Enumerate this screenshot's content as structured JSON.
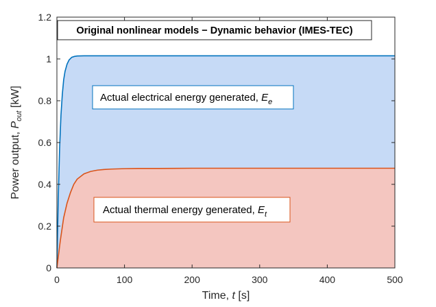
{
  "chart_data": {
    "type": "area",
    "title": "Original nonlinear models − Dynamic behavior (IMES-TEC)",
    "xlabel": {
      "prefix": "Time, ",
      "var": "t",
      "unit": " [s]"
    },
    "ylabel": {
      "prefix": "Power output, ",
      "var": "P",
      "sub": "out",
      "unit": " [kW]"
    },
    "xlim": [
      0,
      500
    ],
    "ylim": [
      0,
      1.2
    ],
    "xticks": [
      0,
      100,
      200,
      300,
      400,
      500
    ],
    "yticks": [
      0,
      0.2,
      0.4,
      0.6,
      0.8,
      1,
      1.2
    ],
    "grid": false,
    "series": [
      {
        "key": "electrical",
        "line_color": "#0072BD",
        "fill_color": "#C6DAF6",
        "x": [
          0,
          2,
          4,
          6,
          8,
          10,
          12,
          15,
          18,
          22,
          26,
          30,
          40,
          50,
          60,
          80,
          100,
          150,
          200,
          300,
          400,
          500
        ],
        "values": [
          0,
          0.33,
          0.57,
          0.73,
          0.83,
          0.9,
          0.94,
          0.975,
          0.995,
          1.008,
          1.012,
          1.014,
          1.015,
          1.015,
          1.015,
          1.015,
          1.015,
          1.015,
          1.015,
          1.015,
          1.015,
          1.015
        ]
      },
      {
        "key": "thermal",
        "line_color": "#D95319",
        "fill_color": "#F4C6C0",
        "x": [
          0,
          5,
          10,
          15,
          20,
          25,
          30,
          40,
          50,
          60,
          70,
          80,
          100,
          120,
          150,
          200,
          300,
          400,
          500
        ],
        "values": [
          0,
          0.13,
          0.24,
          0.31,
          0.36,
          0.4,
          0.425,
          0.45,
          0.462,
          0.468,
          0.471,
          0.473,
          0.475,
          0.476,
          0.476,
          0.477,
          0.477,
          0.477,
          0.477
        ]
      }
    ],
    "annotations": {
      "electrical": {
        "prefix": "Actual electrical energy generated, ",
        "var": "E",
        "sub": "e"
      },
      "thermal": {
        "prefix": "Actual thermal energy generated, ",
        "var": "E",
        "sub": "t"
      }
    }
  }
}
